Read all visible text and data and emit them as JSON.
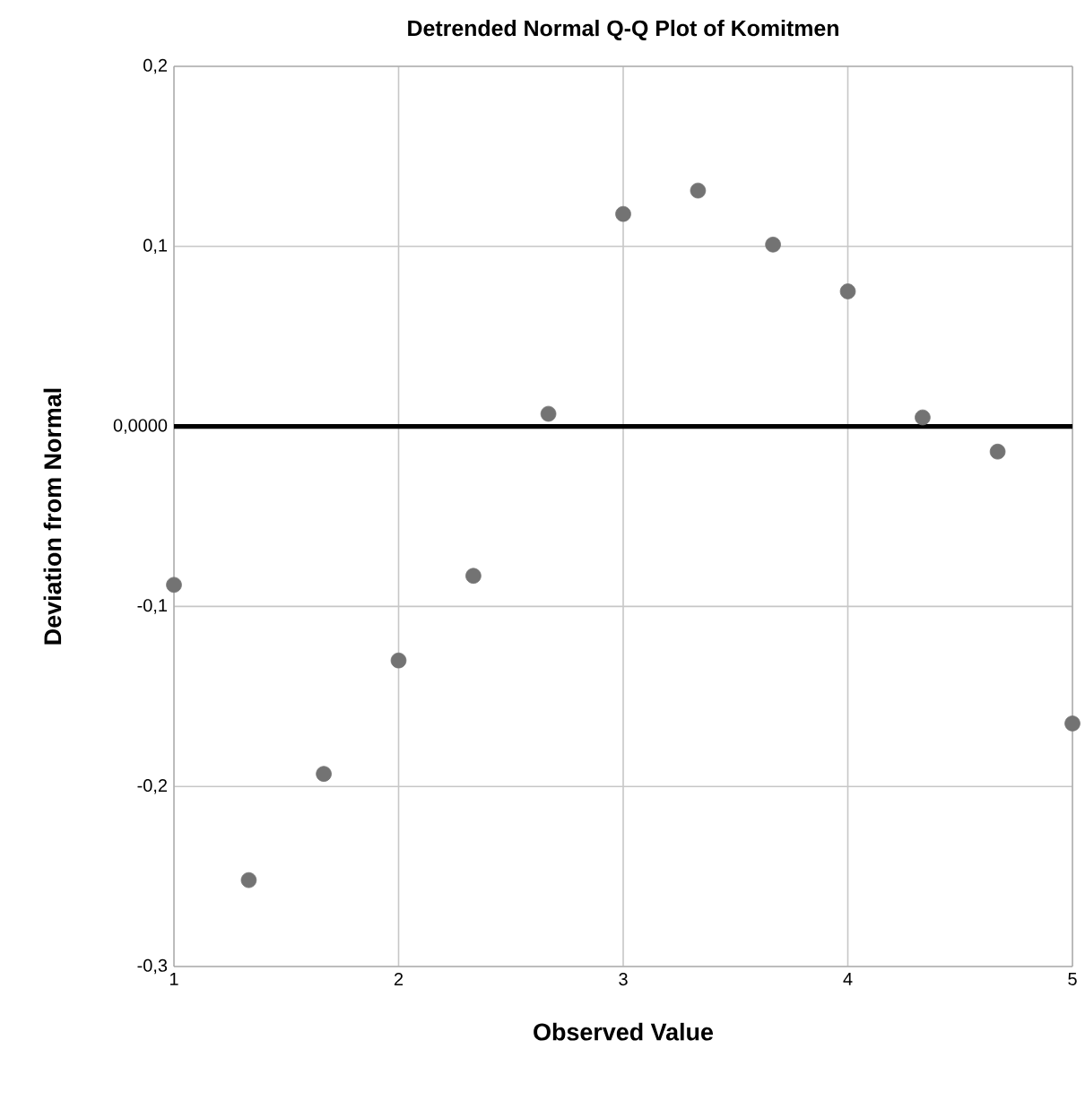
{
  "chart_data": {
    "type": "scatter",
    "title": "Detrended Normal Q-Q Plot of Komitmen",
    "xlabel": "Observed Value",
    "ylabel": "Deviation from Normal",
    "x": [
      1,
      1.333,
      1.667,
      2,
      2.333,
      2.667,
      3,
      3.333,
      3.667,
      4,
      4.333,
      4.667,
      5
    ],
    "series": [
      {
        "color": "#737373",
        "values": [
          -0.088,
          -0.252,
          -0.193,
          -0.13,
          -0.083,
          0.007,
          0.118,
          0.131,
          0.101,
          0.075,
          0.005,
          -0.014,
          -0.165
        ]
      }
    ],
    "xlim": [
      1,
      5
    ],
    "xticks": [
      1,
      2,
      3,
      4,
      5
    ],
    "ylim": [
      -0.3,
      0.2
    ],
    "yticks": [
      {
        "value": -0.3,
        "label": "-0,3"
      },
      {
        "value": -0.2,
        "label": "-0,2"
      },
      {
        "value": -0.1,
        "label": "-0,1"
      },
      {
        "value": 0,
        "label": "0,0000"
      },
      {
        "value": 0.1,
        "label": "0,1"
      },
      {
        "value": 0.2,
        "label": "0,2"
      }
    ],
    "ref_lines": [
      {
        "axis": "y",
        "value": 0,
        "color": "#000000"
      }
    ],
    "grid": true,
    "marker": "circle"
  }
}
